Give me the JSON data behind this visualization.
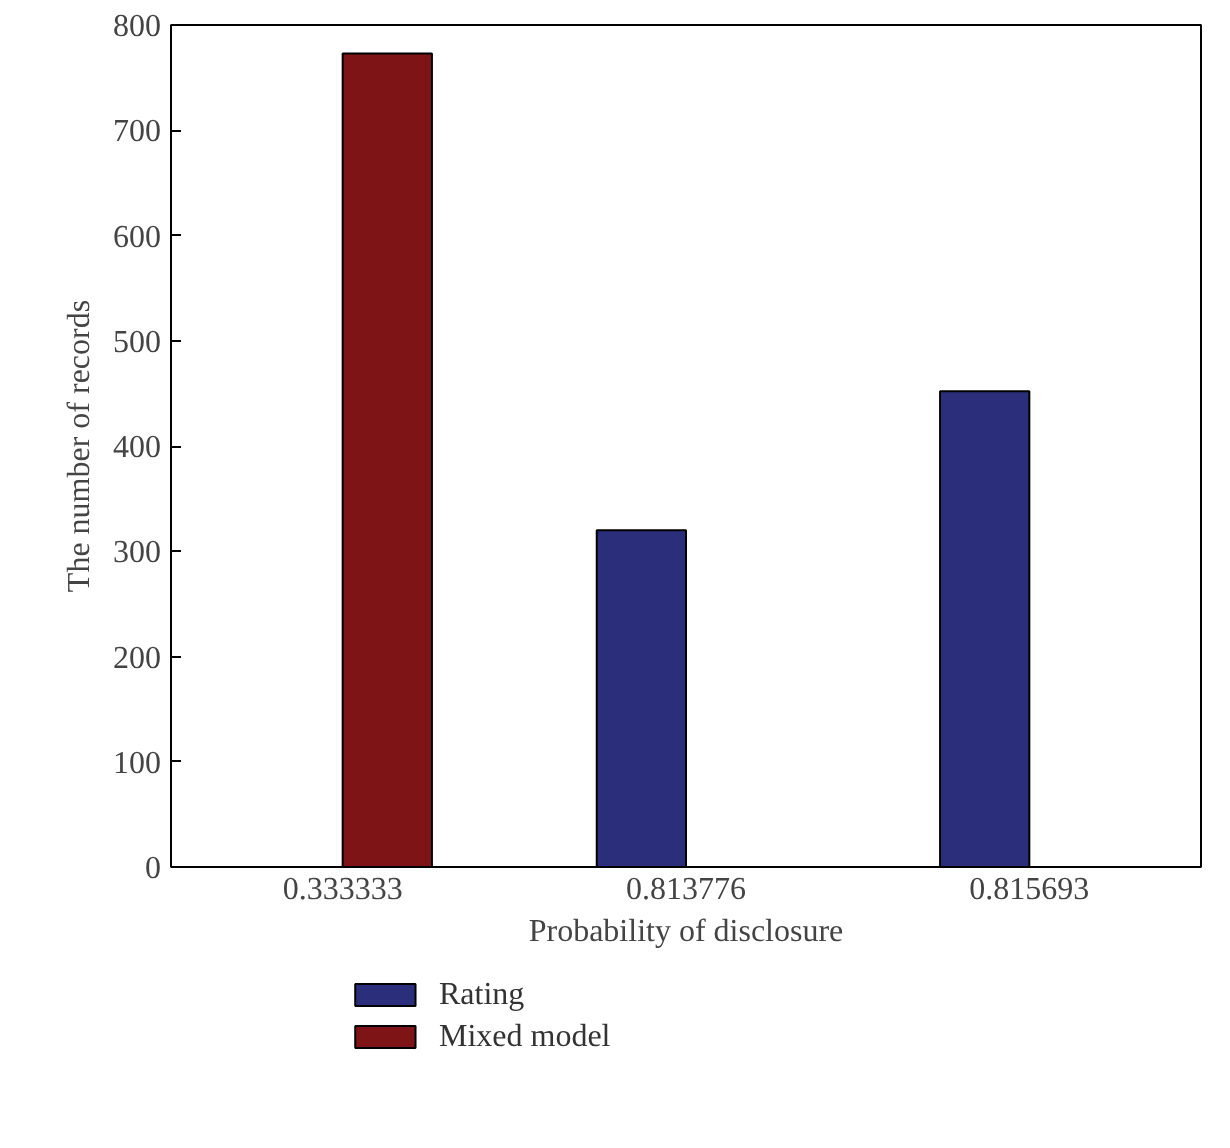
{
  "chart_data": {
    "type": "bar",
    "xlabel": "Probability of disclosure",
    "ylabel": "The number of records",
    "categories": [
      "0.333333",
      "0.813776",
      "0.815693"
    ],
    "series": [
      {
        "name": "Rating",
        "color": "#2b2f7b",
        "values": [
          0,
          320,
          452
        ]
      },
      {
        "name": "Mixed model",
        "color": "#7f1416",
        "values": [
          773,
          0,
          0
        ]
      }
    ],
    "ylim": [
      0,
      800
    ],
    "yticks": [
      0,
      100,
      200,
      300,
      400,
      500,
      600,
      700,
      800
    ],
    "grid": false,
    "legend": "bottom left"
  }
}
